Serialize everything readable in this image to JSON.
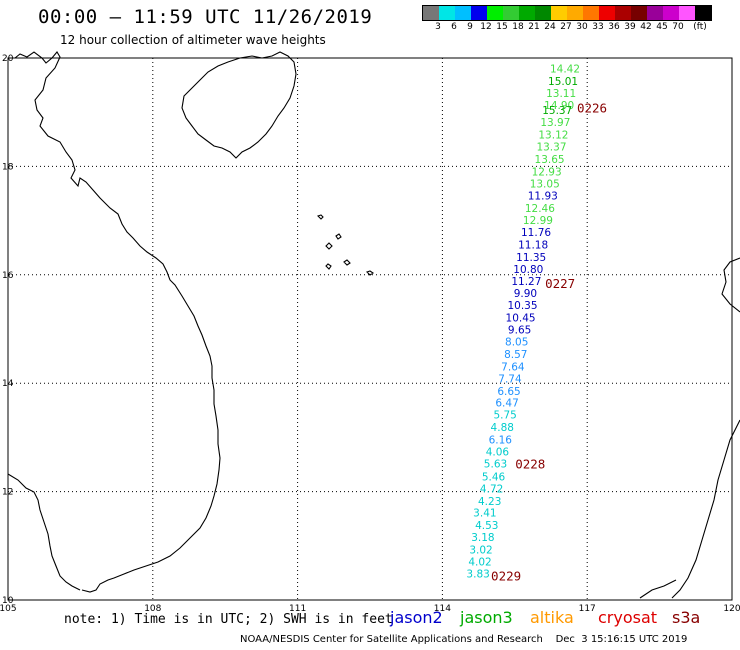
{
  "header": {
    "title": "00:00 — 11:59 UTC 11/26/2019",
    "subtitle": "12 hour collection of altimeter wave heights"
  },
  "legend": {
    "colors": [
      "#777777",
      "#00e6e6",
      "#00bfff",
      "#0000ee",
      "#00ee00",
      "#33cc33",
      "#00aa00",
      "#008800",
      "#ffcc00",
      "#ffaa00",
      "#ff7700",
      "#ee0000",
      "#aa0000",
      "#770000",
      "#990099",
      "#cc00cc",
      "#ff55ff",
      "#000000"
    ],
    "labels": [
      "3",
      "6",
      "9",
      "12",
      "15",
      "18",
      "21",
      "24",
      "27",
      "30",
      "33",
      "36",
      "39",
      "42",
      "45",
      "70",
      "(ft)"
    ]
  },
  "map": {
    "lat_labels": [
      "20",
      "18",
      "16",
      "14",
      "12",
      "10"
    ],
    "lon_labels": [
      "105",
      "108",
      "111",
      "114",
      "117",
      "120"
    ],
    "lat_values": [
      20,
      18,
      16,
      14,
      12,
      10
    ],
    "lon_values": [
      105,
      108,
      111,
      114,
      117,
      120
    ]
  },
  "track": {
    "points": [
      {
        "text": "14.42",
        "lat": 19.81,
        "lon": 116.54,
        "color": "#44dd44"
      },
      {
        "text": "15.01",
        "lat": 19.58,
        "lon": 116.5,
        "color": "#00aa00"
      },
      {
        "text": "13.11",
        "lat": 19.35,
        "lon": 116.46,
        "color": "#44dd44"
      },
      {
        "text": "14.90",
        "lat": 19.13,
        "lon": 116.42,
        "color": "#44dd44"
      },
      {
        "text": "15.37",
        "lat": 19.04,
        "lon": 116.38,
        "color": "#00aa00"
      },
      {
        "text": "13.97",
        "lat": 18.82,
        "lon": 116.34,
        "color": "#44dd44"
      },
      {
        "text": "13.12",
        "lat": 18.59,
        "lon": 116.3,
        "color": "#44dd44"
      },
      {
        "text": "13.37",
        "lat": 18.37,
        "lon": 116.26,
        "color": "#44dd44"
      },
      {
        "text": "13.65",
        "lat": 18.14,
        "lon": 116.22,
        "color": "#44dd44"
      },
      {
        "text": "12.93",
        "lat": 17.91,
        "lon": 116.16,
        "color": "#44dd44"
      },
      {
        "text": "13.05",
        "lat": 17.68,
        "lon": 116.12,
        "color": "#44dd44"
      },
      {
        "text": "11.93",
        "lat": 17.46,
        "lon": 116.08,
        "color": "#0000bb"
      },
      {
        "text": "12.46",
        "lat": 17.23,
        "lon": 116.02,
        "color": "#44dd44"
      },
      {
        "text": "12.99",
        "lat": 17.01,
        "lon": 115.98,
        "color": "#44dd44"
      },
      {
        "text": "11.76",
        "lat": 16.79,
        "lon": 115.94,
        "color": "#0000bb"
      },
      {
        "text": "11.18",
        "lat": 16.56,
        "lon": 115.88,
        "color": "#0000bb"
      },
      {
        "text": "11.35",
        "lat": 16.33,
        "lon": 115.84,
        "color": "#0000bb"
      },
      {
        "text": "10.80",
        "lat": 16.11,
        "lon": 115.78,
        "color": "#0000bb"
      },
      {
        "text": "11.27",
        "lat": 15.89,
        "lon": 115.74,
        "color": "#0000bb"
      },
      {
        "text": "9.90",
        "lat": 15.66,
        "lon": 115.72,
        "color": "#0000bb"
      },
      {
        "text": "10.35",
        "lat": 15.44,
        "lon": 115.66,
        "color": "#0000bb"
      },
      {
        "text": "10.45",
        "lat": 15.21,
        "lon": 115.62,
        "color": "#0000bb"
      },
      {
        "text": "9.65",
        "lat": 14.99,
        "lon": 115.6,
        "color": "#0000bb"
      },
      {
        "text": "8.05",
        "lat": 14.77,
        "lon": 115.54,
        "color": "#1e90ff"
      },
      {
        "text": "8.57",
        "lat": 14.54,
        "lon": 115.52,
        "color": "#1e90ff"
      },
      {
        "text": "7.64",
        "lat": 14.31,
        "lon": 115.46,
        "color": "#1e90ff"
      },
      {
        "text": "7.74",
        "lat": 14.09,
        "lon": 115.4,
        "color": "#1e90ff"
      },
      {
        "text": "6.65",
        "lat": 13.86,
        "lon": 115.38,
        "color": "#1e90ff"
      },
      {
        "text": "6.47",
        "lat": 13.64,
        "lon": 115.34,
        "color": "#1e90ff"
      },
      {
        "text": "5.75",
        "lat": 13.42,
        "lon": 115.3,
        "color": "#00cccc"
      },
      {
        "text": "4.88",
        "lat": 13.19,
        "lon": 115.24,
        "color": "#00cccc"
      },
      {
        "text": "6.16",
        "lat": 12.96,
        "lon": 115.2,
        "color": "#1e90ff"
      },
      {
        "text": "4.06",
        "lat": 12.74,
        "lon": 115.14,
        "color": "#00cccc"
      },
      {
        "text": "5.63",
        "lat": 12.52,
        "lon": 115.1,
        "color": "#00cccc"
      },
      {
        "text": "5.46",
        "lat": 12.28,
        "lon": 115.06,
        "color": "#00cccc"
      },
      {
        "text": "4.72",
        "lat": 12.06,
        "lon": 115.02,
        "color": "#00cccc"
      },
      {
        "text": "4.23",
        "lat": 11.83,
        "lon": 114.98,
        "color": "#00cccc"
      },
      {
        "text": "3.41",
        "lat": 11.61,
        "lon": 114.88,
        "color": "#00cccc"
      },
      {
        "text": "4.53",
        "lat": 11.38,
        "lon": 114.92,
        "color": "#00cccc"
      },
      {
        "text": "3.18",
        "lat": 11.16,
        "lon": 114.84,
        "color": "#00cccc"
      },
      {
        "text": "3.02",
        "lat": 10.93,
        "lon": 114.8,
        "color": "#00cccc"
      },
      {
        "text": "4.02",
        "lat": 10.71,
        "lon": 114.78,
        "color": "#00cccc"
      },
      {
        "text": "3.83",
        "lat": 10.49,
        "lon": 114.74,
        "color": "#00cccc"
      }
    ],
    "time_labels": [
      {
        "text": "0226",
        "lat": 19.09,
        "lon": 117.1
      },
      {
        "text": "0227",
        "lat": 15.85,
        "lon": 116.44
      },
      {
        "text": "0228",
        "lat": 12.52,
        "lon": 115.82
      },
      {
        "text": "0229",
        "lat": 10.45,
        "lon": 115.32
      }
    ],
    "time_color": "#880000"
  },
  "footer": {
    "note": "note: 1) Time is in UTC; 2) SWH is in feet",
    "satellites": [
      {
        "name": "jason2",
        "color": "#0000cc"
      },
      {
        "name": "jason3",
        "color": "#00aa00"
      },
      {
        "name": "altika",
        "color": "#ff9900"
      },
      {
        "name": "cryosat",
        "color": "#dd0000"
      },
      {
        "name": "s3a",
        "color": "#880000"
      }
    ],
    "credit": "NOAA/NESDIS Center for Satellite Applications and Research    Dec  3 15:16:15 UTC 2019"
  }
}
